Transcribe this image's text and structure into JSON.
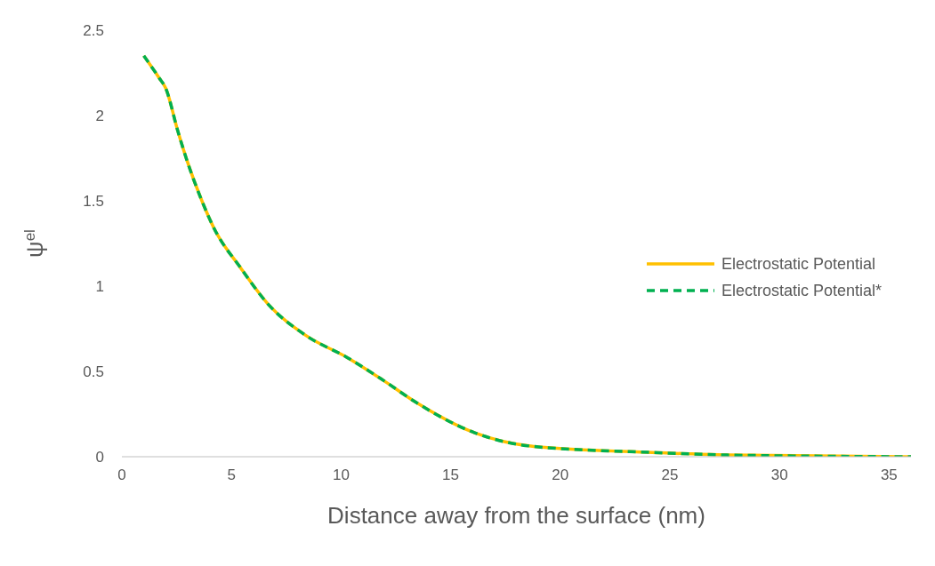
{
  "chart_data": {
    "type": "line",
    "xlabel": "Distance away from the surface (nm)",
    "ylabel": "ψ$^{el}$",
    "x": [
      1,
      1.7,
      2,
      2.55,
      2.96,
      3.65,
      4.2,
      5.4,
      6.7,
      8.4,
      10.3,
      11.9,
      13.4,
      16.1,
      18.8,
      24.2,
      27.6,
      36
    ],
    "series": [
      {
        "name": "Electrostatic Potential",
        "color": "#ffc000",
        "line_style": "solid",
        "values": [
          2.35,
          2.22,
          2.16,
          1.91,
          1.74,
          1.5,
          1.34,
          1.11,
          0.89,
          0.71,
          0.58,
          0.45,
          0.32,
          0.14,
          0.06,
          0.025,
          0.01,
          0
        ]
      },
      {
        "name": "Electrostatic Potential*",
        "color": "#00b050",
        "line_style": "dashed",
        "values": [
          2.35,
          2.22,
          2.16,
          1.91,
          1.74,
          1.5,
          1.34,
          1.11,
          0.89,
          0.71,
          0.58,
          0.45,
          0.32,
          0.14,
          0.06,
          0.025,
          0.01,
          0
        ]
      }
    ],
    "xlim": [
      0,
      36
    ],
    "xticks": [
      0,
      5,
      10,
      15,
      20,
      25,
      30,
      35
    ],
    "ylim": [
      0,
      2.5
    ],
    "yticks": [
      0,
      0.5,
      1,
      1.5,
      2,
      2.5
    ],
    "grid": false,
    "legend": "right",
    "marker": "none"
  }
}
